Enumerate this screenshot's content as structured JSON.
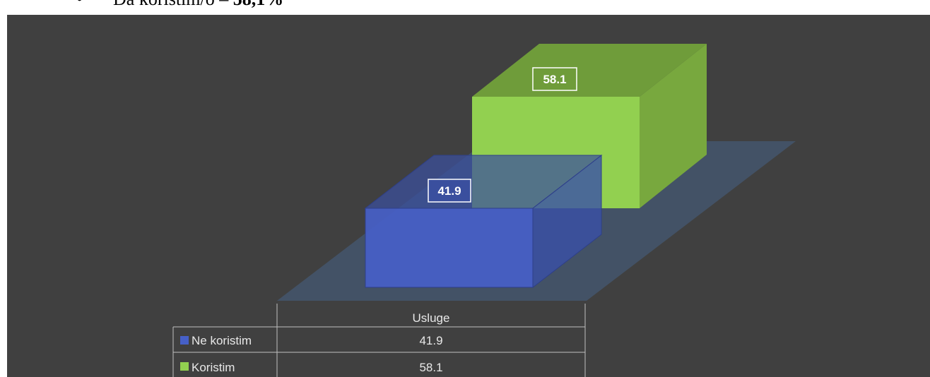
{
  "document": {
    "bullet": "•",
    "text": "Da koristim/ó – ",
    "value": "58,1%"
  },
  "chart_data": {
    "type": "bar",
    "categories": [
      "Usluge"
    ],
    "series": [
      {
        "name": "Ne koristim",
        "values": [
          41.9
        ],
        "color": "#4660c8",
        "data_label": "41.9"
      },
      {
        "name": "Koristim",
        "values": [
          58.1
        ],
        "color": "#8fd14f",
        "data_label": "58.1"
      }
    ],
    "data_table": {
      "header": "Usluge",
      "rows": [
        {
          "label": "Ne koristim",
          "value": "41.9"
        },
        {
          "label": "Koristim",
          "value": "58.1"
        }
      ]
    },
    "background_color": "#404040",
    "floor_color": "#44546a"
  }
}
